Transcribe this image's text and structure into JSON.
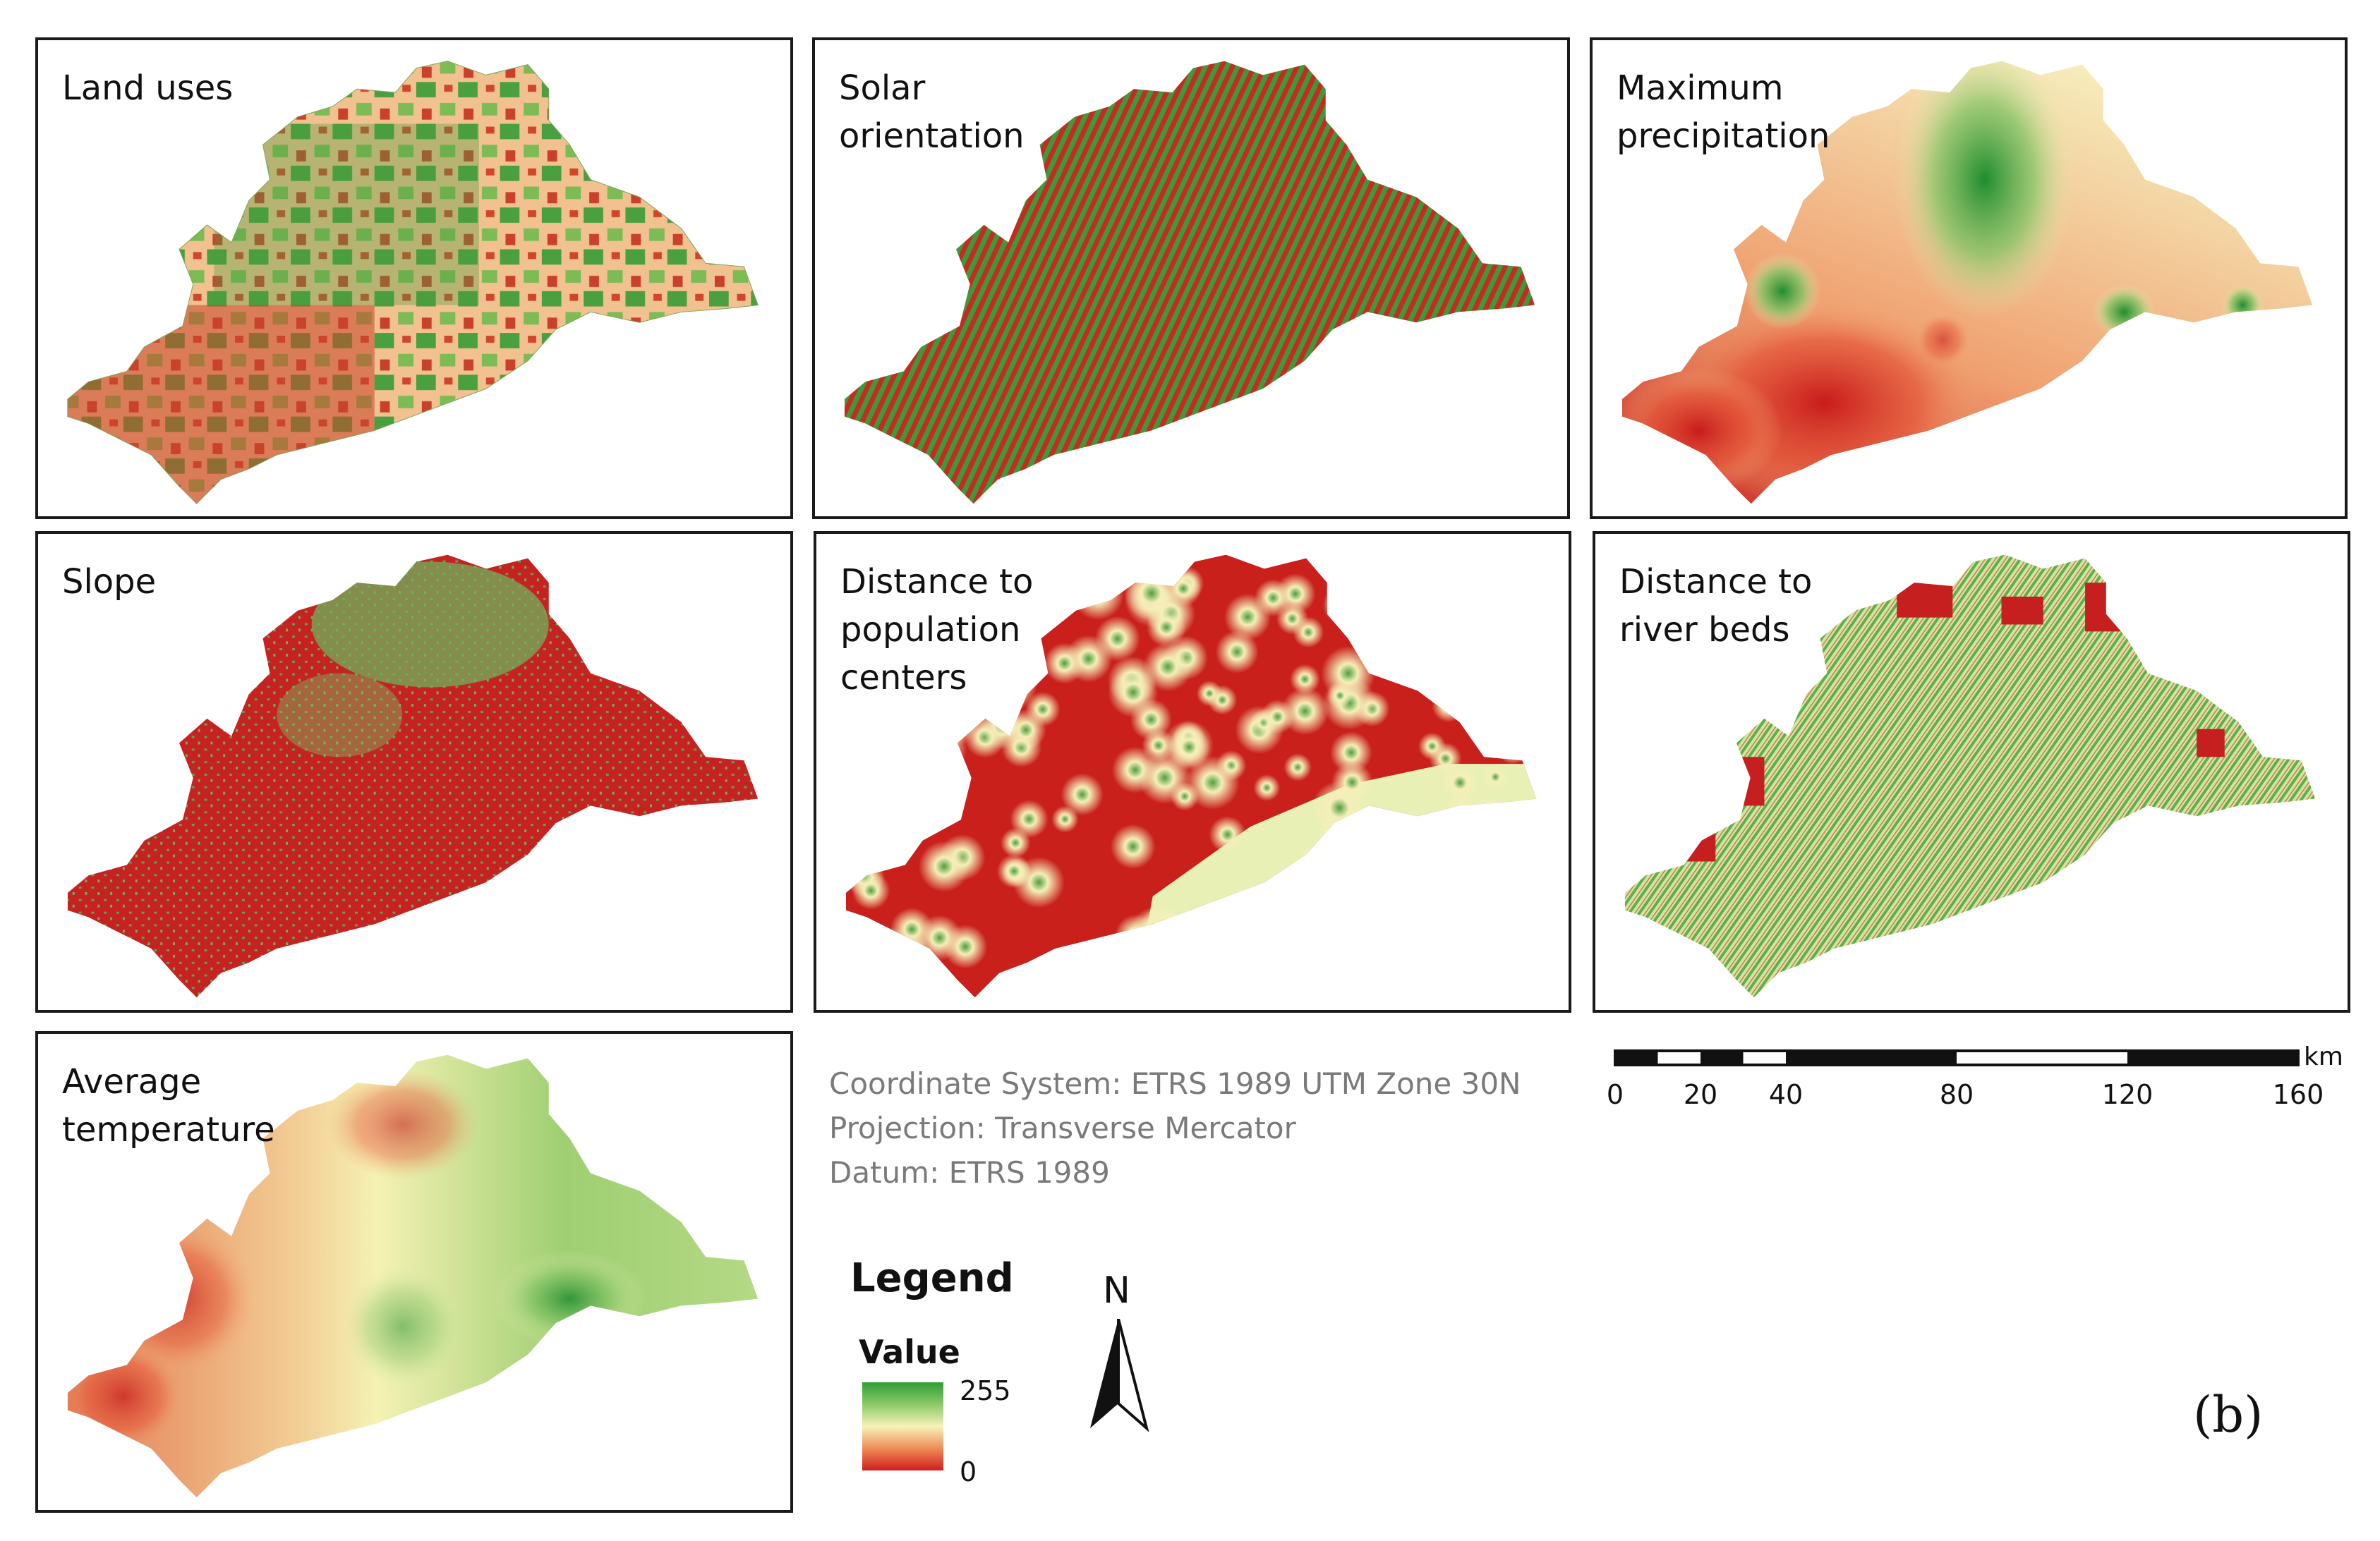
{
  "panels": [
    {
      "id": "land-uses",
      "title": "Land uses"
    },
    {
      "id": "solar-orientation",
      "title": "Solar\norientation"
    },
    {
      "id": "maximum-precipitation",
      "title": "Maximum\nprecipitation"
    },
    {
      "id": "slope",
      "title": "Slope"
    },
    {
      "id": "distance-population",
      "title": "Distance to\npopulation\ncenters"
    },
    {
      "id": "distance-river",
      "title": "Distance to\nriver beds"
    },
    {
      "id": "average-temperature",
      "title": "Average\ntemperature"
    }
  ],
  "coordinate_info": {
    "system": "Coordinate System: ETRS 1989 UTM Zone 30N",
    "projection": "Projection: Transverse Mercator",
    "datum": "Datum: ETRS 1989"
  },
  "scale_bar": {
    "unit": "km",
    "ticks": [
      "0",
      "20",
      "40",
      "80",
      "120",
      "160"
    ],
    "values": [
      0,
      20,
      40,
      80,
      120,
      160
    ]
  },
  "legend": {
    "title": "Legend",
    "subtitle": "Value",
    "max_label": "255",
    "min_label": "0",
    "colors": [
      "#2f9e35",
      "#8cc968",
      "#f7f2b8",
      "#ef8d58",
      "#d01c1c"
    ]
  },
  "north_arrow": {
    "label": "N"
  },
  "figure_label": "(b)"
}
